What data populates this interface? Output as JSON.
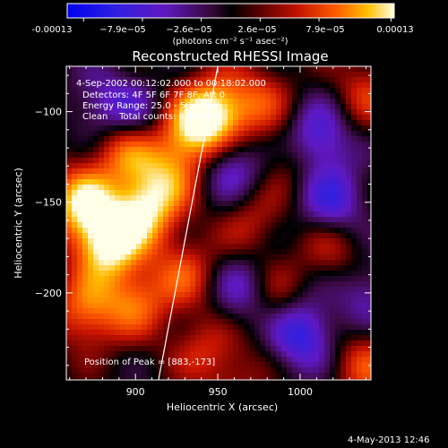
{
  "colorbar": {
    "ticks": [
      "-0.00013",
      "−7.9e−05",
      "−2.6e−05",
      "2.6e−05",
      "7.9e−05",
      "0.00013"
    ],
    "unit_label": "(photons cm⁻² s⁻¹ asec⁻²)"
  },
  "chart_data": {
    "type": "heatmap",
    "title": "Reconstructed RHESSI Image",
    "xlabel": "Heliocentric X (arcsec)",
    "ylabel": "Heliocentric Y (arcsec)",
    "xlim": [
      858,
      1043
    ],
    "ylim": [
      -248,
      -75
    ],
    "xticks": [
      900,
      950,
      1000
    ],
    "yticks": [
      -100,
      -150,
      -200
    ],
    "color_range": [
      -0.00013,
      0.00013
    ],
    "colormap": "rhessi-blue-purple-red-yellow",
    "annotations": [
      "4-Sep-2002 00:12:02.000 to 00:18:02.000",
      "Detectors: 4F 5F 6F 7F 8F, Att 0",
      "Energy Range: 25.0 - 50.0 keV",
      "Clean    Total counts: 8.94E+03"
    ],
    "peak_label": "Position of Peak = [883,-173]",
    "peak_position": [
      883,
      -173
    ],
    "limb_line": [
      [
        914,
        -248
      ],
      [
        950,
        -75
      ]
    ],
    "sources": [
      {
        "x": 883,
        "y": -173,
        "value": 0.00013
      },
      {
        "x": 868,
        "y": -150,
        "value": 0.000115
      },
      {
        "x": 905,
        "y": -155,
        "value": 0.00011
      },
      {
        "x": 935,
        "y": -110,
        "value": 0.000105
      },
      {
        "x": 950,
        "y": -100,
        "value": 0.0001
      },
      {
        "x": 895,
        "y": -120,
        "value": 9e-05
      },
      {
        "x": 920,
        "y": -135,
        "value": 7e-05
      },
      {
        "x": 930,
        "y": -190,
        "value": 6e-05
      },
      {
        "x": 900,
        "y": -205,
        "value": 7e-05
      },
      {
        "x": 870,
        "y": -210,
        "value": 8e-05
      },
      {
        "x": 975,
        "y": -95,
        "value": 5.5e-05
      },
      {
        "x": 995,
        "y": -125,
        "value": 4e-05
      },
      {
        "x": 1040,
        "y": -90,
        "value": 5e-05
      },
      {
        "x": 970,
        "y": -160,
        "value": 4e-05
      },
      {
        "x": 1020,
        "y": -175,
        "value": 4.5e-05
      },
      {
        "x": 985,
        "y": -205,
        "value": 5e-05
      },
      {
        "x": 940,
        "y": -230,
        "value": 4e-05
      },
      {
        "x": 1040,
        "y": -240,
        "value": 6e-05
      },
      {
        "x": 960,
        "y": -245,
        "value": 3.5e-05
      },
      {
        "x": 1010,
        "y": -115,
        "value": -9e-05
      },
      {
        "x": 1000,
        "y": -222,
        "value": -0.0001
      },
      {
        "x": 1020,
        "y": -150,
        "value": -8e-05
      },
      {
        "x": 958,
        "y": -130,
        "value": -7e-05
      },
      {
        "x": 900,
        "y": -105,
        "value": -6e-05
      },
      {
        "x": 965,
        "y": -200,
        "value": -6e-05
      },
      {
        "x": 880,
        "y": -95,
        "value": -5e-05
      },
      {
        "x": 1040,
        "y": -200,
        "value": -5e-05
      }
    ]
  },
  "footer": {
    "date": "4-May-2013 12:46"
  }
}
